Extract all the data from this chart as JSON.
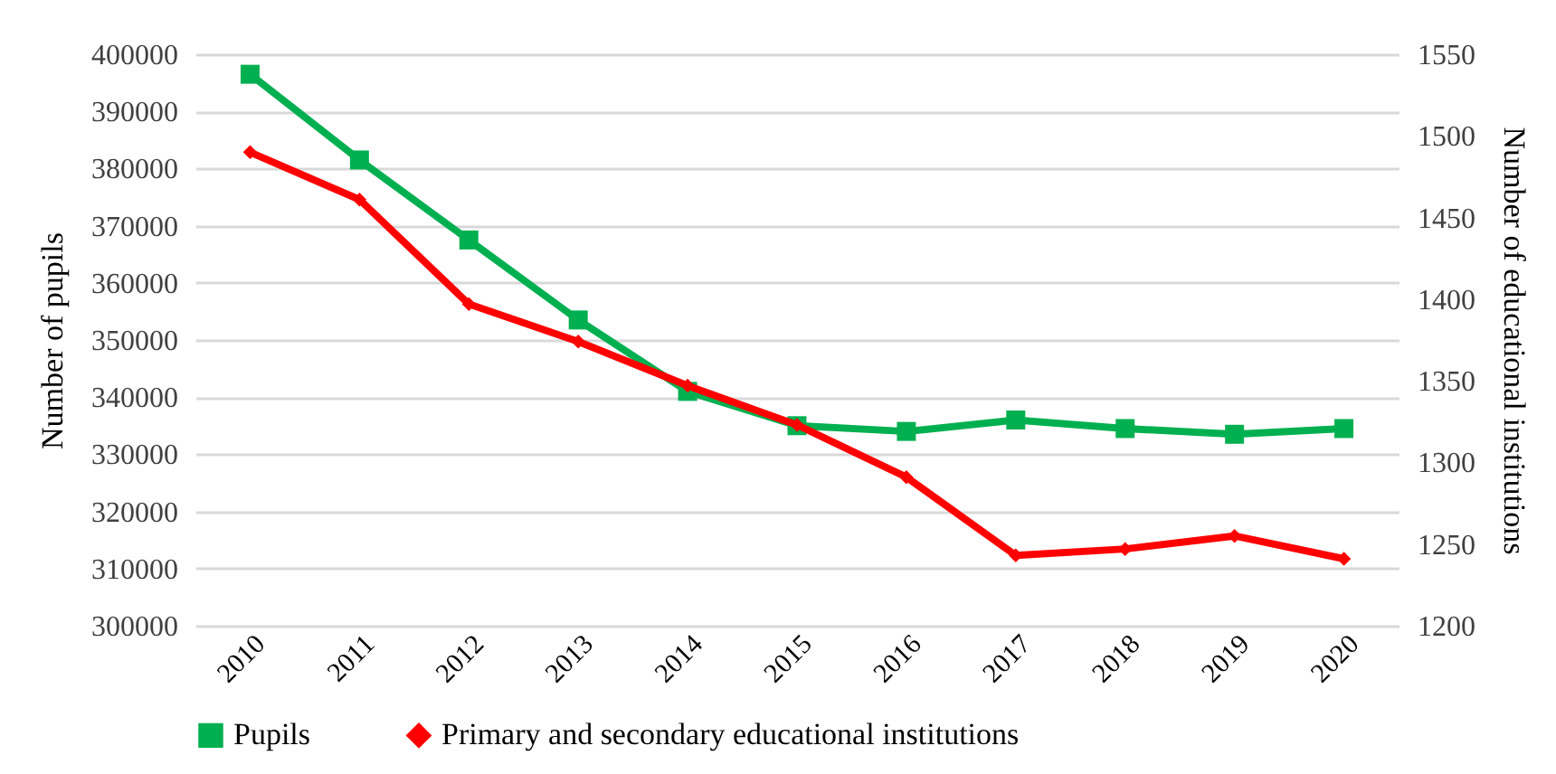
{
  "chart_data": {
    "type": "line",
    "ylabel": "Number of pupils",
    "y2label": "Number of educational institutions",
    "categories": [
      "2010",
      "2011",
      "2012",
      "2013",
      "2014",
      "2015",
      "2016",
      "2017",
      "2018",
      "2019",
      "2020"
    ],
    "series": [
      {
        "name": "Pupils",
        "color": "#00b050",
        "marker": "square",
        "values": [
          396500,
          381500,
          367500,
          353500,
          341000,
          335000,
          334000,
          336000,
          334500,
          333500,
          334500
        ]
      },
      {
        "name": "Primary and secondary educational institutions",
        "color": "#ff0000",
        "marker": "diamond",
        "axis": "y2",
        "values": [
          1490,
          1461,
          1397,
          1374,
          1347,
          1323,
          1291,
          1243,
          1247,
          1255,
          1241
        ]
      }
    ],
    "ylim": [
      300000,
      400000
    ],
    "yticks": [
      300000,
      310000,
      320000,
      330000,
      340000,
      350000,
      360000,
      370000,
      380000,
      390000,
      400000
    ],
    "y2lim": [
      1200,
      1550
    ],
    "y2ticks": [
      1200,
      1250,
      1300,
      1350,
      1400,
      1450,
      1500,
      1550
    ],
    "grid": "y",
    "legend": "bottom",
    "line_style": "solid"
  }
}
